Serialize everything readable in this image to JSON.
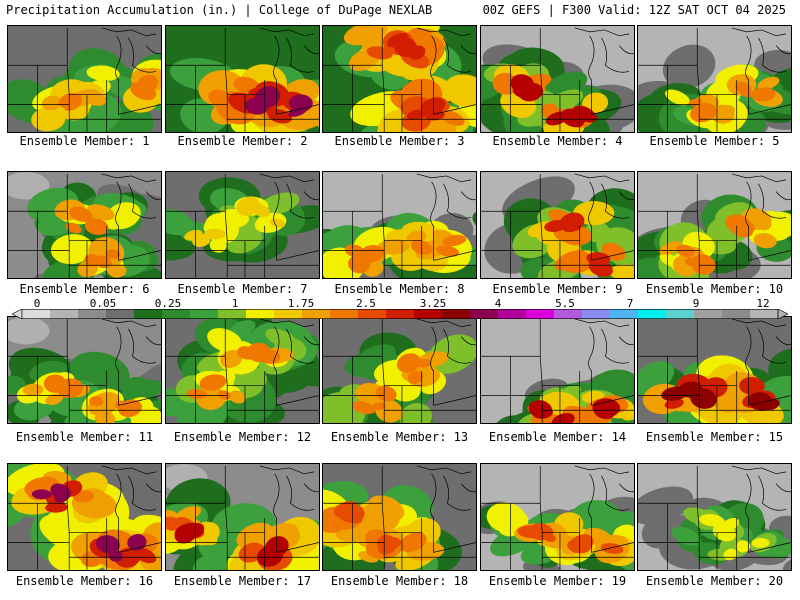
{
  "header": {
    "left": "Precipitation Accumulation (in.) | College of DuPage NEXLAB",
    "right": "00Z GEFS | F300 Valid: 12Z SAT OCT 04 2025"
  },
  "members": [
    {
      "caption": "Ensemble Member: 1",
      "palette": [
        3,
        3,
        5,
        6,
        8,
        9,
        10,
        11
      ],
      "hot": [
        [
          0.45,
          0.75
        ],
        [
          0.85,
          0.55
        ]
      ]
    },
    {
      "caption": "Ensemble Member: 2",
      "palette": [
        4,
        6,
        8,
        9,
        10,
        11,
        13,
        16
      ],
      "hot": [
        [
          0.75,
          0.75
        ],
        [
          0.55,
          0.7
        ]
      ]
    },
    {
      "caption": "Ensemble Member: 3",
      "palette": [
        4,
        6,
        8,
        9,
        10,
        11,
        12,
        13
      ],
      "hot": [
        [
          0.5,
          0.2
        ],
        [
          0.7,
          0.8
        ]
      ]
    },
    {
      "caption": "Ensemble Member: 4",
      "palette": [
        1,
        3,
        4,
        5,
        7,
        9,
        11,
        14
      ],
      "hot": [
        [
          0.55,
          0.85
        ],
        [
          0.3,
          0.6
        ]
      ]
    },
    {
      "caption": "Ensemble Member: 5",
      "palette": [
        1,
        3,
        4,
        5,
        6,
        8,
        10,
        11
      ],
      "hot": [
        [
          0.7,
          0.6
        ],
        [
          0.4,
          0.8
        ]
      ]
    },
    {
      "caption": "Ensemble Member: 6",
      "palette": [
        2,
        3,
        4,
        5,
        6,
        8,
        10,
        11
      ],
      "hot": [
        [
          0.55,
          0.45
        ],
        [
          0.6,
          0.85
        ]
      ]
    },
    {
      "caption": "Ensemble Member: 7",
      "palette": [
        3,
        3,
        4,
        5,
        6,
        7,
        8,
        9
      ],
      "hot": [
        [
          0.6,
          0.4
        ],
        [
          0.3,
          0.6
        ]
      ]
    },
    {
      "caption": "Ensemble Member: 8",
      "palette": [
        1,
        3,
        4,
        6,
        8,
        9,
        10,
        11
      ],
      "hot": [
        [
          0.75,
          0.7
        ],
        [
          0.3,
          0.8
        ]
      ]
    },
    {
      "caption": "Ensemble Member: 9",
      "palette": [
        1,
        3,
        4,
        5,
        7,
        9,
        11,
        13
      ],
      "hot": [
        [
          0.75,
          0.85
        ],
        [
          0.6,
          0.5
        ]
      ]
    },
    {
      "caption": "Ensemble Member: 10",
      "palette": [
        1,
        3,
        4,
        5,
        7,
        8,
        10,
        11
      ],
      "hot": [
        [
          0.75,
          0.55
        ],
        [
          0.3,
          0.8
        ]
      ]
    },
    {
      "caption": "Ensemble Member: 11",
      "palette": [
        2,
        3,
        4,
        5,
        6,
        8,
        10,
        11
      ],
      "hot": [
        [
          0.7,
          0.85
        ],
        [
          0.3,
          0.7
        ]
      ]
    },
    {
      "caption": "Ensemble Member: 12",
      "palette": [
        3,
        4,
        5,
        6,
        7,
        8,
        10,
        11
      ],
      "hot": [
        [
          0.6,
          0.3
        ],
        [
          0.3,
          0.7
        ]
      ]
    },
    {
      "caption": "Ensemble Member: 13",
      "palette": [
        3,
        3,
        4,
        5,
        7,
        8,
        10,
        11
      ],
      "hot": [
        [
          0.35,
          0.8
        ],
        [
          0.6,
          0.5
        ]
      ]
    },
    {
      "caption": "Ensemble Member: 14",
      "palette": [
        1,
        3,
        4,
        5,
        7,
        9,
        11,
        14
      ],
      "hot": [
        [
          0.45,
          0.9
        ],
        [
          0.8,
          0.85
        ]
      ]
    },
    {
      "caption": "Ensemble Member: 15",
      "palette": [
        3,
        4,
        6,
        8,
        9,
        10,
        13,
        15
      ],
      "hot": [
        [
          0.35,
          0.75
        ],
        [
          0.8,
          0.75
        ]
      ]
    },
    {
      "caption": "Ensemble Member: 16",
      "palette": [
        3,
        6,
        8,
        9,
        10,
        11,
        13,
        16
      ],
      "hot": [
        [
          0.75,
          0.8
        ],
        [
          0.35,
          0.3
        ]
      ]
    },
    {
      "caption": "Ensemble Member: 17",
      "palette": [
        2,
        4,
        6,
        8,
        9,
        10,
        12,
        14
      ],
      "hot": [
        [
          0.65,
          0.8
        ],
        [
          0.2,
          0.6
        ]
      ]
    },
    {
      "caption": "Ensemble Member: 18",
      "palette": [
        3,
        4,
        6,
        8,
        9,
        10,
        11,
        12
      ],
      "hot": [
        [
          0.45,
          0.75
        ],
        [
          0.2,
          0.5
        ]
      ]
    },
    {
      "caption": "Ensemble Member: 19",
      "palette": [
        1,
        3,
        4,
        6,
        8,
        9,
        10,
        12
      ],
      "hot": [
        [
          0.75,
          0.75
        ],
        [
          0.4,
          0.65
        ]
      ]
    },
    {
      "caption": "Ensemble Member: 20",
      "palette": [
        1,
        3,
        3,
        4,
        5,
        6,
        7,
        8
      ],
      "hot": [
        [
          0.5,
          0.6
        ],
        [
          0.7,
          0.8
        ]
      ]
    }
  ],
  "colorbar": {
    "labels": [
      "0",
      "0.05",
      "0.25",
      "1",
      "1.75",
      "2.5",
      "3.25",
      "4",
      "5.5",
      "7",
      "9",
      "12"
    ],
    "colors": [
      "#dcdcdc",
      "#b4b4b4",
      "#8c8c8c",
      "#6e6e6e",
      "#1e6e1e",
      "#2e8b2e",
      "#3ca03c",
      "#7fbf2a",
      "#f0f000",
      "#f0c800",
      "#f0a000",
      "#f07800",
      "#e64b00",
      "#d21e00",
      "#b40000",
      "#8c0000",
      "#8c0050",
      "#b4009b",
      "#dc00dc",
      "#b45adc",
      "#8c8cf0",
      "#50b4f0",
      "#00f0f0",
      "#5ad2d2",
      "#a0a0a0",
      "#8c8c8c",
      "#b4b4b4"
    ]
  }
}
